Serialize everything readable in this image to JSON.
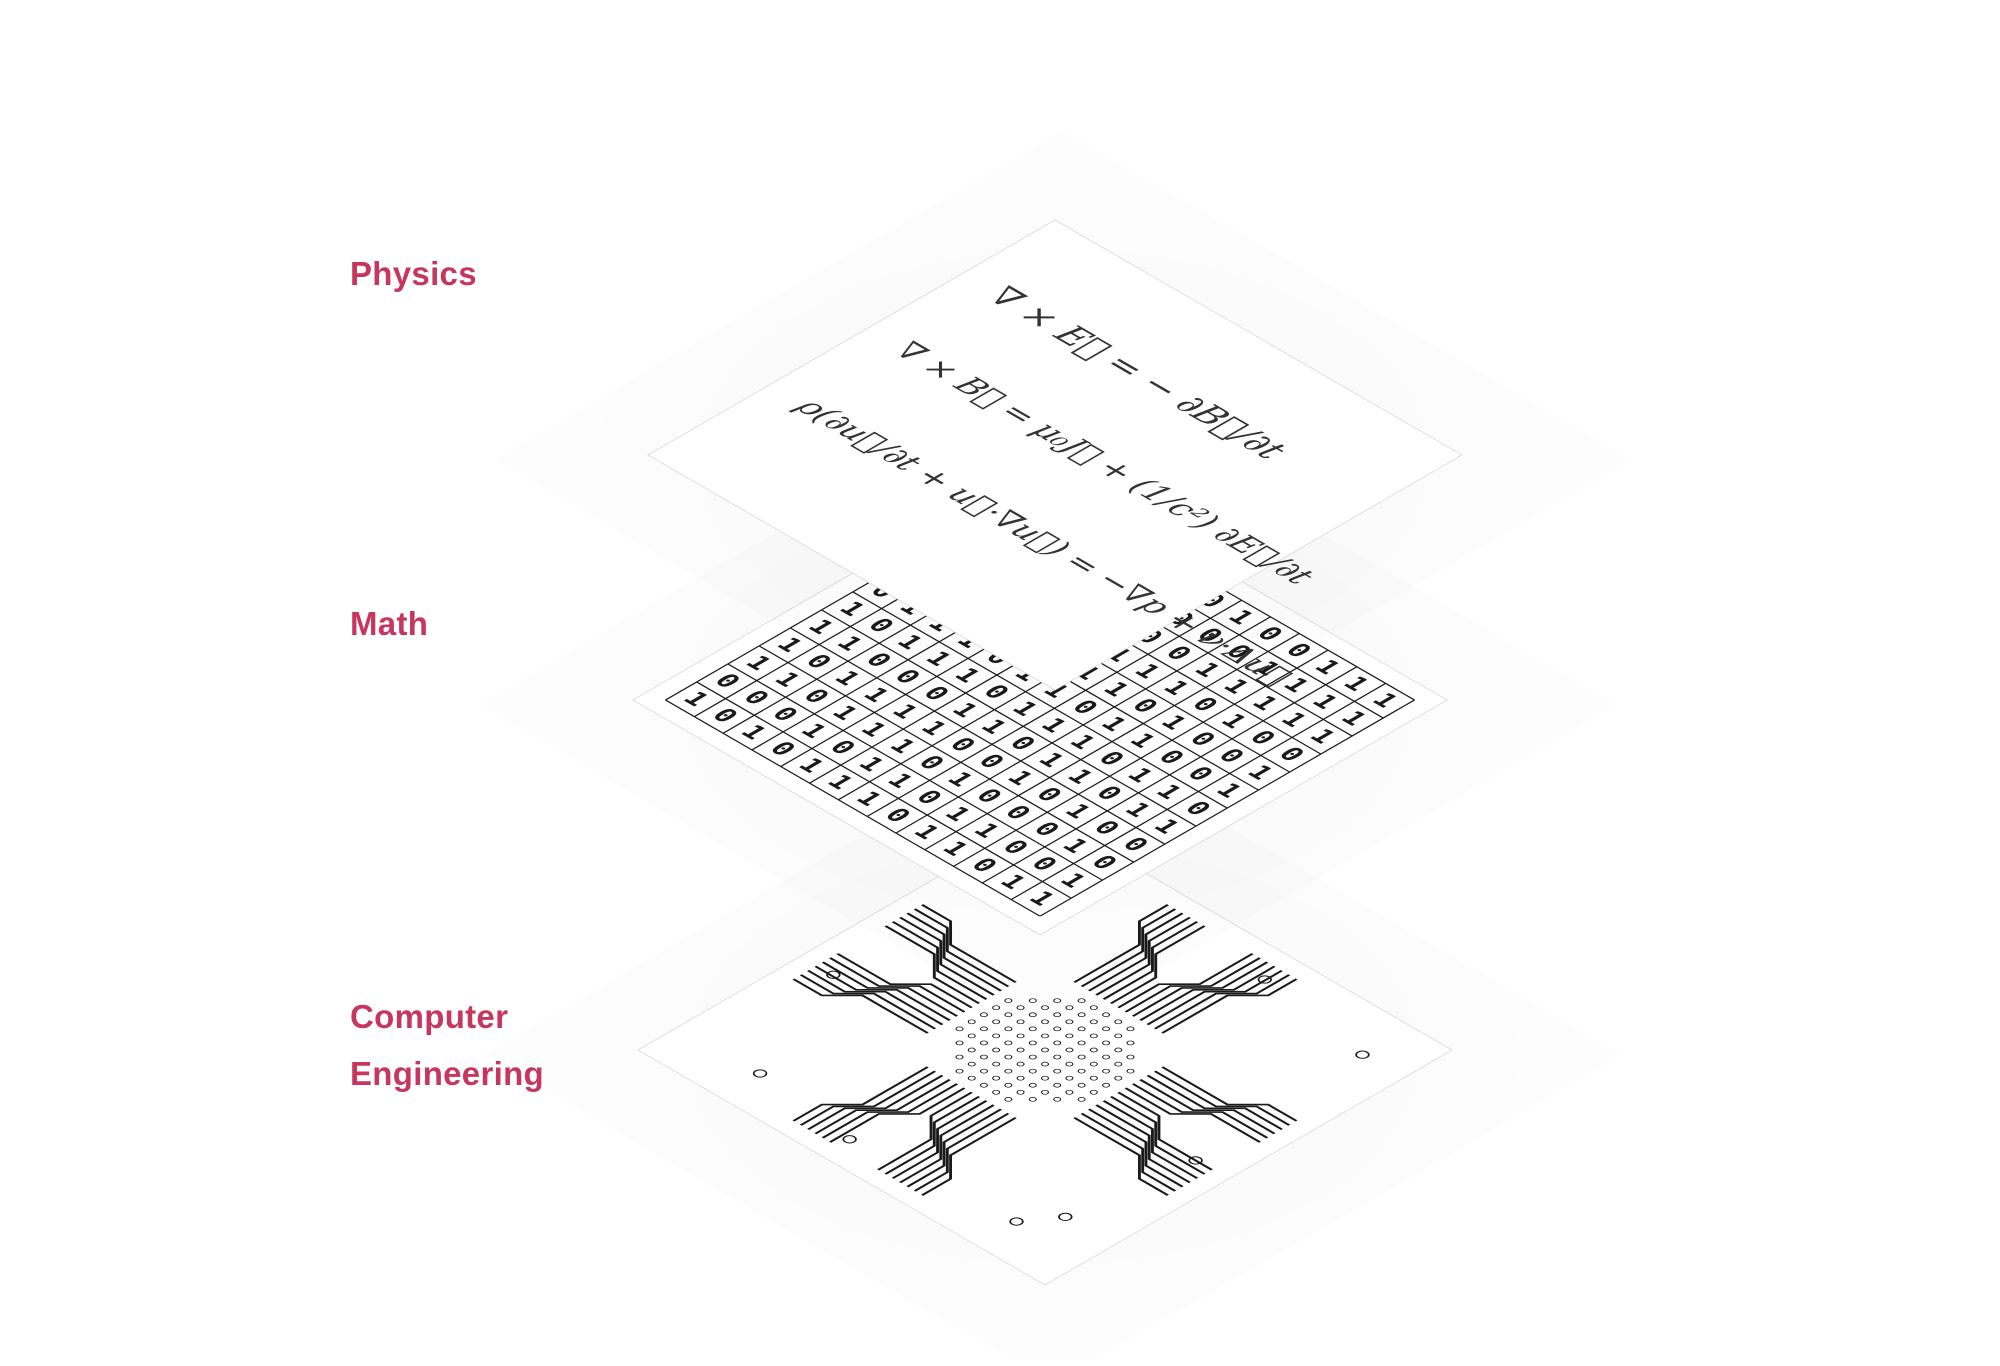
{
  "colors": {
    "label": "#c7365f",
    "ink": "#1a1a1a",
    "sheet": "#ffffff",
    "sheet_edge": "#d9d9d9"
  },
  "layers": [
    {
      "id": "physics",
      "label_lines": [
        "Physics"
      ],
      "equations": [
        "∇ × E⃗ = − ∂B⃗/∂t",
        "∇ × B⃗ = μ₀J⃗ + (1/c²) ∂E⃗/∂t",
        "ρ(∂u⃗/∂t + u⃗·∇u⃗) = −∇p + ν·Δu⃗"
      ]
    },
    {
      "id": "math",
      "label_lines": [
        "Math"
      ],
      "binary_rows": [
        "1000110100111",
        "0100010001111",
        "0001010011111",
        "0111001110100",
        "0011101101001",
        "0111011011001",
        "1011101110110",
        "1100011011011",
        "1011110010100",
        "1101110100010",
        "0001011011001",
        "1010111011011"
      ]
    },
    {
      "id": "computer-engineering",
      "label_lines": [
        "Computer",
        "Engineering"
      ],
      "pattern": "circuit-board-traces"
    }
  ]
}
